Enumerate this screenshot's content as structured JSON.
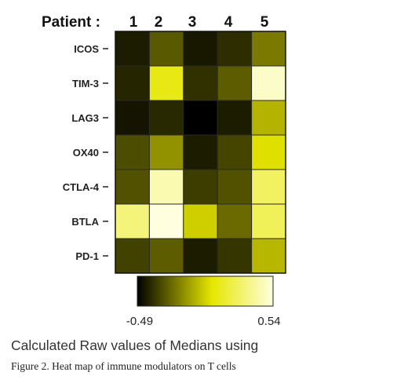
{
  "chart_data": {
    "type": "heatmap",
    "column_header": "Patient :",
    "columns": [
      "1",
      "2",
      "3",
      "4",
      "5"
    ],
    "rows": [
      "ICOS",
      "TIM-3",
      "LAG3",
      "OX40",
      "CTLA-4",
      "BTLA",
      "PD-1"
    ],
    "values": [
      [
        -0.42,
        -0.27,
        -0.43,
        -0.38,
        -0.19
      ],
      [
        -0.4,
        0.12,
        -0.37,
        -0.26,
        0.49
      ],
      [
        -0.44,
        -0.39,
        -0.49,
        -0.42,
        -0.05
      ],
      [
        -0.3,
        -0.13,
        -0.42,
        -0.32,
        0.06
      ],
      [
        -0.29,
        0.44,
        -0.34,
        -0.29,
        0.28
      ],
      [
        0.33,
        0.54,
        0.02,
        -0.23,
        0.26
      ],
      [
        -0.33,
        -0.26,
        -0.42,
        -0.36,
        -0.04
      ]
    ],
    "scale": {
      "min": -0.49,
      "max": 0.54,
      "min_label": "-0.49",
      "max_label": "0.54"
    },
    "colors": {
      "low": "#000000",
      "mid": "#e6e600",
      "high": "#ffffe0"
    }
  },
  "subtitle": "Calculated Raw values of Medians using",
  "caption": "Figure 2. Heat map of immune modulators on T cells"
}
